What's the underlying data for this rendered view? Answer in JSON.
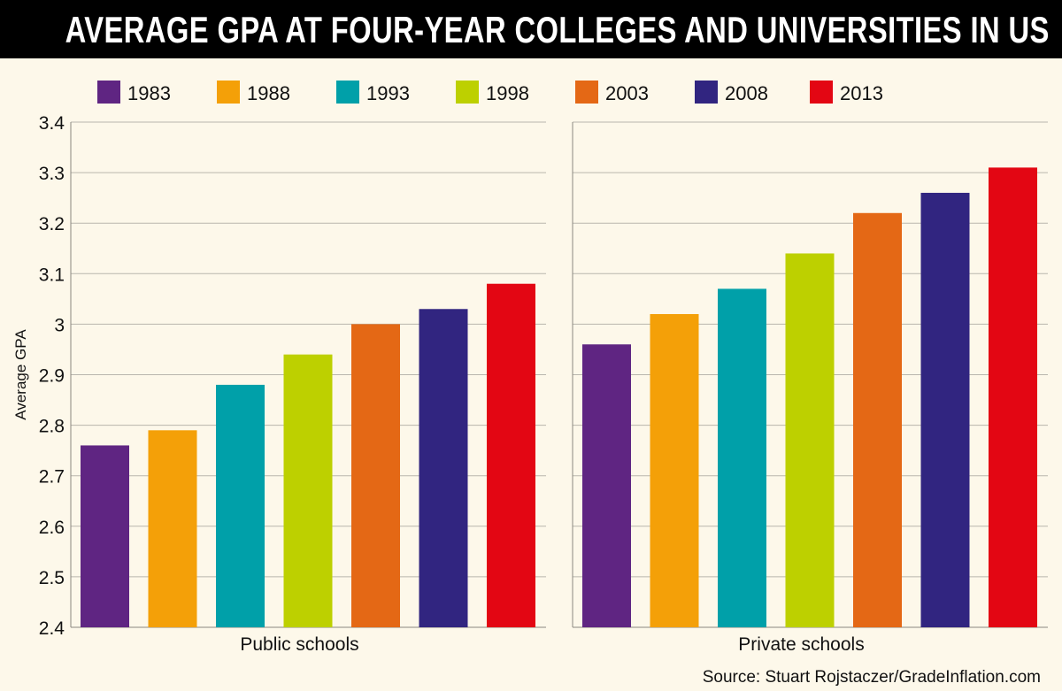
{
  "title": "AVERAGE GPA AT FOUR-YEAR COLLEGES AND UNIVERSITIES IN US",
  "source": "Source: Stuart Rojstaczer/GradeInflation.com",
  "colors": {
    "background": "#fdf8ea",
    "title_bar": "#000000",
    "grid": "#b9b6ad"
  },
  "chart_data": {
    "type": "bar",
    "title": "AVERAGE GPA AT FOUR-YEAR COLLEGES AND UNIVERSITIES IN US",
    "ylabel": "Average GPA",
    "xlabel": "",
    "ylim": [
      2.4,
      3.4
    ],
    "yticks": [
      2.4,
      2.5,
      2.6,
      2.7,
      2.8,
      2.9,
      3,
      3.1,
      3.2,
      3.3,
      3.4
    ],
    "grid": true,
    "legend_position": "top",
    "series_years": [
      "1983",
      "1988",
      "1993",
      "1998",
      "2003",
      "2008",
      "2013"
    ],
    "series_colors": [
      "#5f2582",
      "#f4a008",
      "#00a0a9",
      "#bdd000",
      "#e46815",
      "#312580",
      "#e30613"
    ],
    "panels": [
      {
        "category": "Public schools",
        "values": [
          2.76,
          2.79,
          2.88,
          2.94,
          3.0,
          3.03,
          3.08
        ]
      },
      {
        "category": "Private schools",
        "values": [
          2.96,
          3.02,
          3.07,
          3.14,
          3.22,
          3.26,
          3.31
        ]
      }
    ]
  }
}
